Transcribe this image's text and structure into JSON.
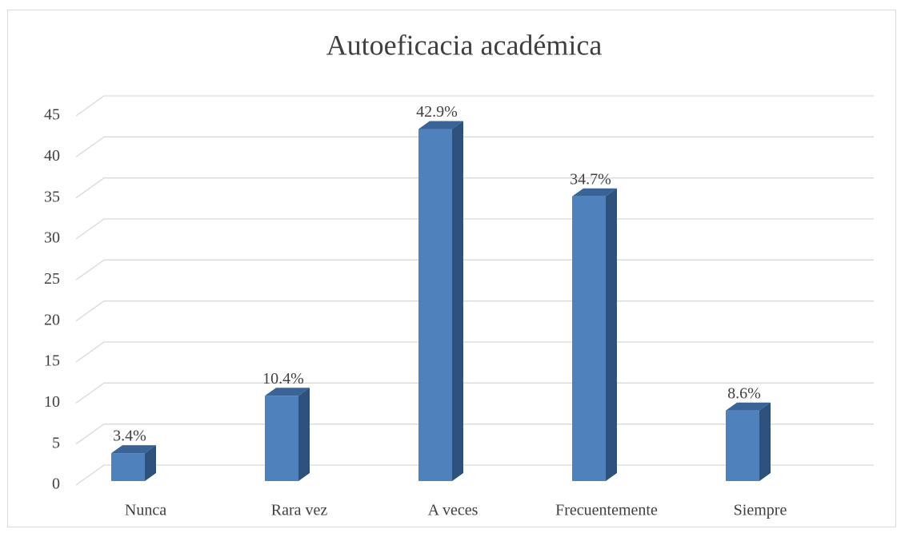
{
  "chart_data": {
    "type": "bar",
    "title": "Autoeficacia académica",
    "categories": [
      "Nunca",
      "Rara vez",
      "A veces",
      "Frecuentemente",
      "Siempre"
    ],
    "values": [
      3.4,
      10.4,
      42.9,
      34.7,
      8.6
    ],
    "value_labels": [
      "3.4%",
      "10.4%",
      "42.9%",
      "34.7%",
      "8.6%"
    ],
    "color": "#4f81bd",
    "ylim": [
      0,
      45
    ],
    "yticks": [
      0,
      5,
      10,
      15,
      20,
      25,
      30,
      35,
      40,
      45
    ],
    "grid": true
  }
}
